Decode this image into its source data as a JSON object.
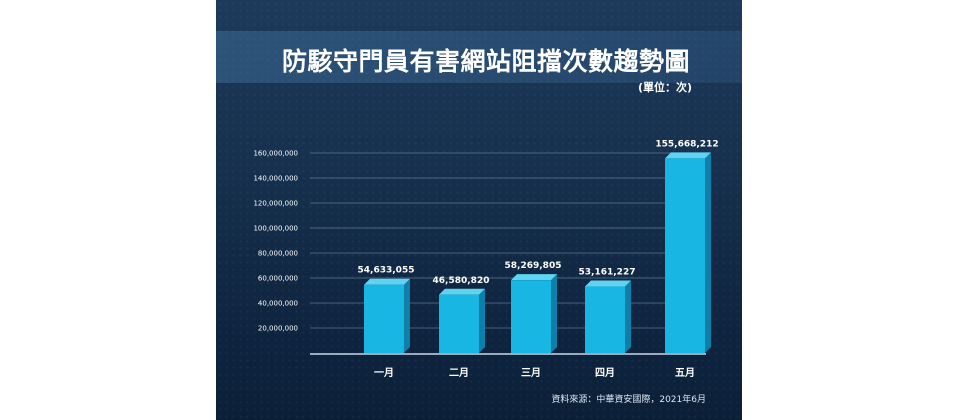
{
  "chart_data": {
    "type": "bar",
    "title": "防駭守門員有害網站阻擋次數趨勢圖",
    "unit": "(單位：次)",
    "source": "資料來源：中華資安國際，2021年6月",
    "categories": [
      "一月",
      "二月",
      "三月",
      "四月",
      "五月"
    ],
    "values": [
      54633055,
      46580820,
      58269805,
      53161227,
      155668212
    ],
    "value_labels": [
      "54,633,055",
      "46,580,820",
      "58,269,805",
      "53,161,227",
      "155,668,212"
    ],
    "ylim": [
      0,
      160000000
    ],
    "yticks": [
      20000000,
      40000000,
      60000000,
      80000000,
      100000000,
      120000000,
      140000000,
      160000000
    ],
    "ytick_labels": [
      "20,000,000",
      "40,000,000",
      "60,000,000",
      "80,000,000",
      "100,000,000",
      "120,000,000",
      "140,000,000",
      "160,000,000"
    ],
    "grid": true,
    "colors": {
      "bar_front": "#17b6e3",
      "bar_side": "#0d7fa8",
      "bar_top": "#5fd4f2",
      "background": "#16304d"
    }
  }
}
